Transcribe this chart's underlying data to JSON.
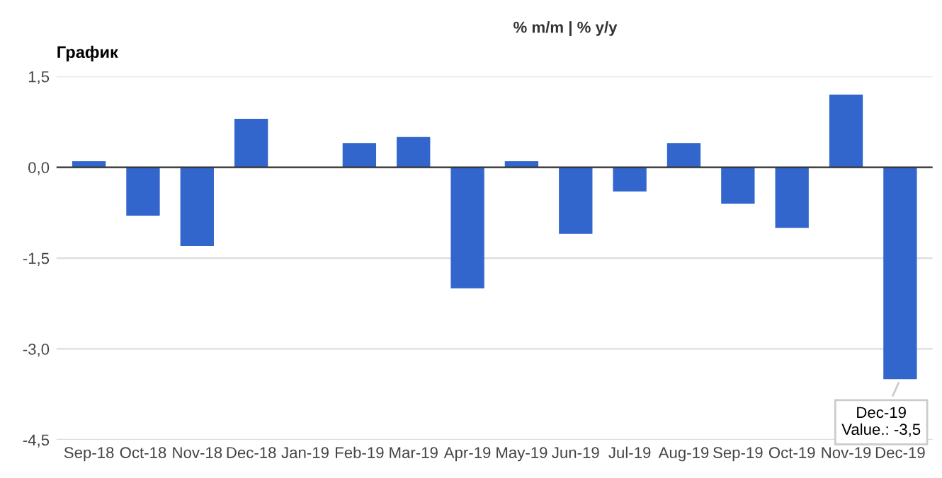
{
  "chart_data": {
    "type": "bar",
    "title": "График",
    "categories": [
      "Sep-18",
      "Oct-18",
      "Nov-18",
      "Dec-18",
      "Jan-19",
      "Feb-19",
      "Mar-19",
      "Apr-19",
      "May-19",
      "Jun-19",
      "Jul-19",
      "Aug-19",
      "Sep-19",
      "Oct-19",
      "Nov-19",
      "Dec-19"
    ],
    "values": [
      0.1,
      -0.8,
      -1.3,
      0.8,
      0,
      0.4,
      0.5,
      -2.0,
      0.1,
      -1.1,
      -0.4,
      0.4,
      -0.6,
      -1.0,
      1.2,
      -3.5
    ],
    "color": "#3366cc",
    "ylim": [
      -4.5,
      1.5
    ],
    "yticks": [
      {
        "value": -4.5,
        "label": "-4,5"
      },
      {
        "value": -3.0,
        "label": "-3,0"
      },
      {
        "value": -1.5,
        "label": "-1,5"
      },
      {
        "value": 0,
        "label": "0,0"
      },
      {
        "value": 1.5,
        "label": "1,5"
      }
    ],
    "grid": "y",
    "annotations": [
      "% m/m | % y/y",
      {
        "text": "Dec-19\nValue.: -3,5",
        "x": "Dec-19",
        "y": -3.5
      }
    ]
  }
}
